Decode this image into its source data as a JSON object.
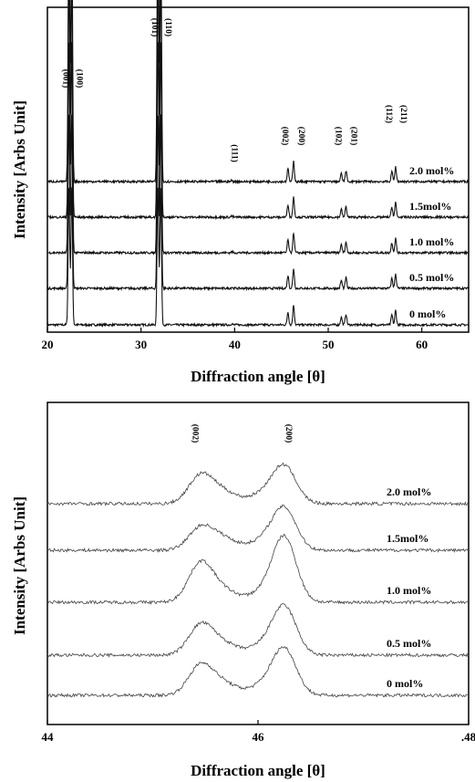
{
  "chart_data": [
    {
      "type": "line",
      "xlabel": "Diffraction angle [θ]",
      "ylabel": "Intensity [Arbs Unit]",
      "xlim": [
        20,
        65
      ],
      "x_ticks": [
        "20",
        "30",
        "40",
        "50",
        "60"
      ],
      "series": [
        {
          "name": "0 mol%"
        },
        {
          "name": "0.5 mol%"
        },
        {
          "name": "1.0 mol%"
        },
        {
          "name": "1.5mol%"
        },
        {
          "name": "2.0 mol%"
        }
      ],
      "peaks": [
        {
          "label": "(001)",
          "x": 22.3,
          "height": 1.0
        },
        {
          "label": "(100)",
          "x": 22.6,
          "height": 1.0
        },
        {
          "label": "(101)",
          "x": 31.8,
          "height": 1.0
        },
        {
          "label": "(110)",
          "x": 32.1,
          "height": 1.0
        },
        {
          "label": "(111)",
          "x": 39.7,
          "height": 0.03
        },
        {
          "label": "(002)",
          "x": 45.7,
          "height": 0.35
        },
        {
          "label": "(200)",
          "x": 46.3,
          "height": 0.55
        },
        {
          "label": "(102)",
          "x": 51.4,
          "height": 0.22
        },
        {
          "label": "(201)",
          "x": 51.9,
          "height": 0.3
        },
        {
          "label": "(112)",
          "x": 56.8,
          "height": 0.28
        },
        {
          "label": "(211)",
          "x": 57.2,
          "height": 0.4
        }
      ]
    },
    {
      "type": "line",
      "xlabel": "Diffraction angle [θ]",
      "ylabel": "Intensity [Arbs Unit]",
      "xlim": [
        44,
        48
      ],
      "x_ticks": [
        "44",
        "46",
        ".48"
      ],
      "series": [
        {
          "name": "0 mol%"
        },
        {
          "name": "0.5 mol%"
        },
        {
          "name": "1.0 mol%"
        },
        {
          "name": "1.5mol%"
        },
        {
          "name": "2.0 mol%"
        }
      ],
      "peaks": [
        {
          "label": "(002)",
          "x": 45.45
        },
        {
          "label": "(200)",
          "x": 46.25
        }
      ]
    }
  ]
}
